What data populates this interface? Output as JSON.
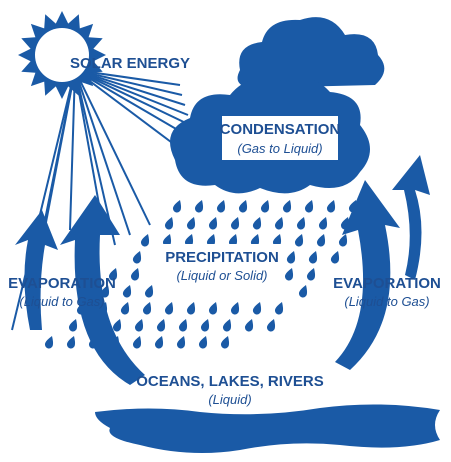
{
  "labels": {
    "solar": "SOLAR ENERGY",
    "condensation": {
      "title": "CONDENSATION",
      "subtitle": "(Gas to Liquid)"
    },
    "precipitation": {
      "title": "PRECIPITATION",
      "subtitle": "(Liquid or Solid)"
    },
    "evaporation_left": {
      "title": "EVAPORATION",
      "subtitle": "(Liquid to Gas)"
    },
    "evaporation_right": {
      "title": "EVAPORATION",
      "subtitle": "(Liquid to Gas)"
    },
    "water": {
      "title": "OCEANS, LAKES, RIVERS",
      "subtitle": "(Liquid)"
    }
  }
}
